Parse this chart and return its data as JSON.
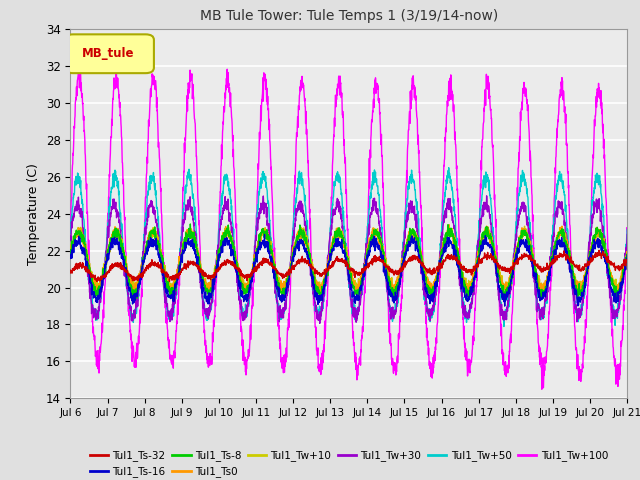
{
  "title": "MB Tule Tower: Tule Temps 1 (3/19/14-now)",
  "ylabel": "Temperature (C)",
  "ylim": [
    14,
    34
  ],
  "yticks": [
    14,
    16,
    18,
    20,
    22,
    24,
    26,
    28,
    30,
    32,
    34
  ],
  "xlabel_dates": [
    "Jul 6",
    "Jul 7",
    "Jul 8",
    "Jul 9",
    "Jul 10",
    "Jul 11",
    "Jul 12",
    "Jul 13",
    "Jul 14",
    "Jul 15",
    "Jul 16",
    "Jul 17",
    "Jul 18",
    "Jul 19",
    "Jul 20",
    "Jul 21"
  ],
  "background_color": "#e0e0e0",
  "plot_bg_color": "#ebebeb",
  "grid_color": "#ffffff",
  "series": [
    {
      "label": "Tul1_Ts-32",
      "color": "#cc0000"
    },
    {
      "label": "Tul1_Ts-16",
      "color": "#0000cc"
    },
    {
      "label": "Tul1_Ts-8",
      "color": "#00cc00"
    },
    {
      "label": "Tul1_Ts0",
      "color": "#ff9900"
    },
    {
      "label": "Tul1_Tw+10",
      "color": "#cccc00"
    },
    {
      "label": "Tul1_Tw+30",
      "color": "#9900cc"
    },
    {
      "label": "Tul1_Tw+50",
      "color": "#00cccc"
    },
    {
      "label": "Tul1_Tw+100",
      "color": "#ff00ff"
    }
  ],
  "legend_box_color": "#ffff99",
  "legend_box_edge": "#aaaa00",
  "legend_text": "MB_tule",
  "legend_text_color": "#cc0000",
  "n_days": 15,
  "pts_per_day": 144,
  "series_params": [
    {
      "base": 20.8,
      "amp_up": 0.4,
      "amp_dn": 0.4,
      "trend": 0.045,
      "noise": 0.08,
      "phase": 0.0
    },
    {
      "base": 21.2,
      "amp_up": 1.3,
      "amp_dn": 1.8,
      "trend": 0.0,
      "noise": 0.15,
      "phase": 0.3
    },
    {
      "base": 21.5,
      "amp_up": 1.5,
      "amp_dn": 1.8,
      "trend": 0.0,
      "noise": 0.15,
      "phase": 0.2
    },
    {
      "base": 21.5,
      "amp_up": 1.5,
      "amp_dn": 1.5,
      "trend": 0.0,
      "noise": 0.15,
      "phase": 0.25
    },
    {
      "base": 21.5,
      "amp_up": 1.5,
      "amp_dn": 1.5,
      "trend": 0.0,
      "noise": 0.15,
      "phase": 0.15
    },
    {
      "base": 21.5,
      "amp_up": 3.0,
      "amp_dn": 3.0,
      "trend": 0.0,
      "noise": 0.2,
      "phase": 0.4
    },
    {
      "base": 21.5,
      "amp_up": 4.5,
      "amp_dn": 3.0,
      "trend": 0.0,
      "noise": 0.2,
      "phase": 0.35
    },
    {
      "base": 22.5,
      "amp_up": 9.0,
      "amp_dn": 6.5,
      "trend": -0.05,
      "noise": 0.3,
      "phase": 0.1
    }
  ]
}
